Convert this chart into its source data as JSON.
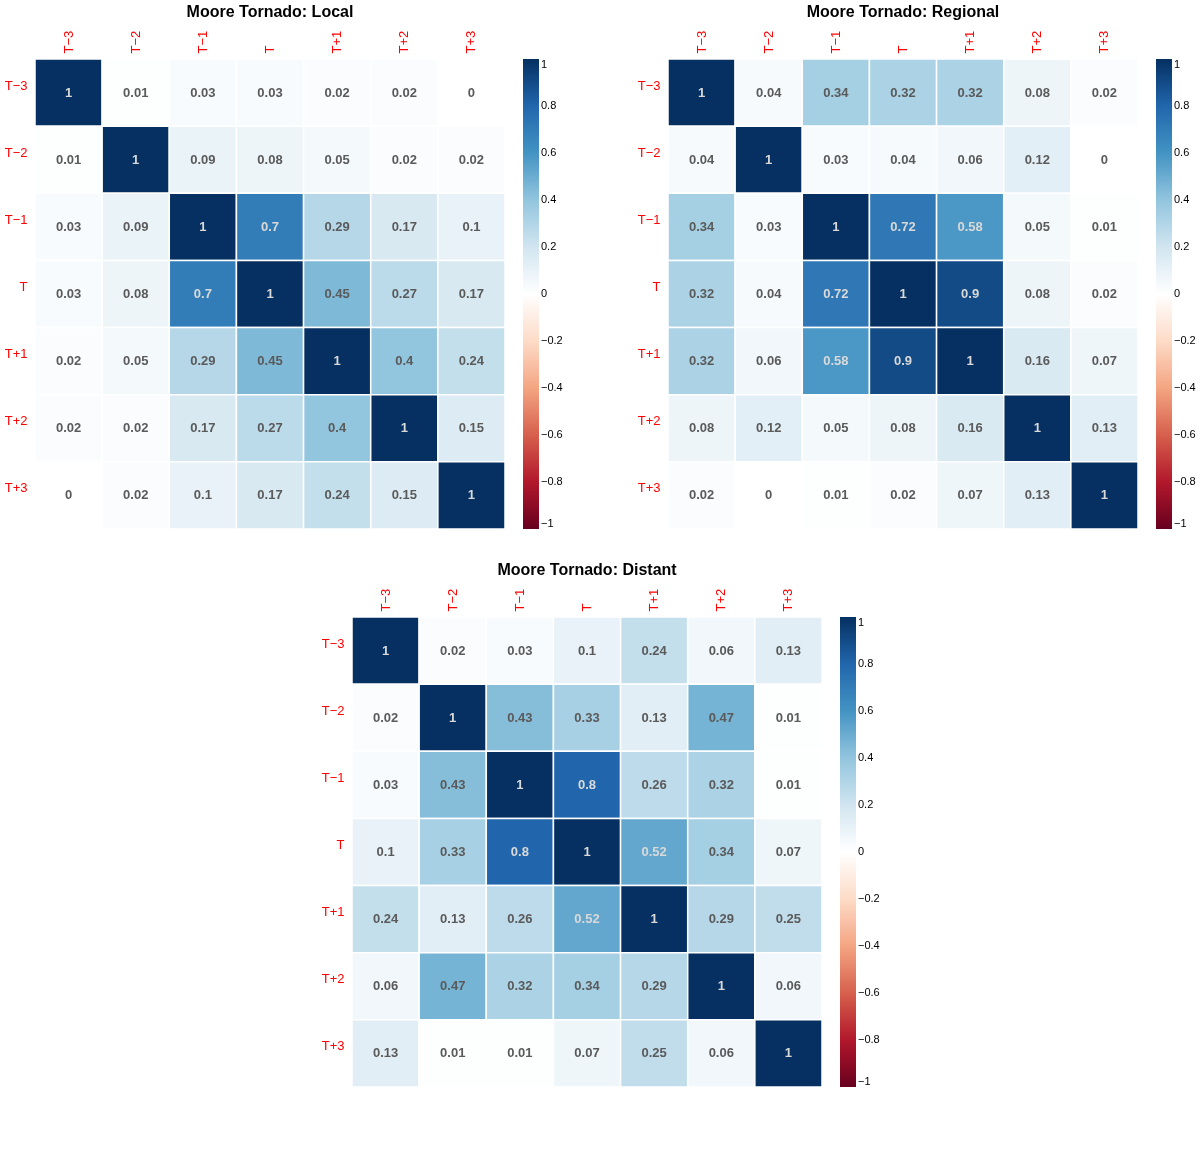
{
  "chart_data": [
    {
      "type": "heatmap",
      "title": "Moore Tornado: Local",
      "categories": [
        "T−3",
        "T−2",
        "T−1",
        "T",
        "T+1",
        "T+2",
        "T+3"
      ],
      "y_categories": [
        "T−3",
        "T−2",
        "T−1",
        "T",
        "T+1",
        "T+2",
        "T+3"
      ],
      "cells": [
        [
          1,
          0.01,
          0.03,
          0.03,
          0.02,
          0.02,
          0
        ],
        [
          0.01,
          1,
          0.09,
          0.08,
          0.05,
          0.02,
          0.02
        ],
        [
          0.03,
          0.09,
          1,
          0.7,
          0.29,
          0.17,
          0.1
        ],
        [
          0.03,
          0.08,
          0.7,
          1,
          0.45,
          0.27,
          0.17
        ],
        [
          0.02,
          0.05,
          0.29,
          0.45,
          1,
          0.4,
          0.24
        ],
        [
          0.02,
          0.02,
          0.17,
          0.27,
          0.4,
          1,
          0.15
        ],
        [
          0,
          0.02,
          0.1,
          0.17,
          0.24,
          0.15,
          1
        ]
      ],
      "clim": [
        -1,
        1
      ],
      "cticks": [
        {
          "value": -1,
          "label": "−1"
        },
        {
          "value": -0.8,
          "label": "−0.8"
        },
        {
          "value": -0.6,
          "label": "−0.6"
        },
        {
          "value": -0.4,
          "label": "−0.4"
        },
        {
          "value": -0.2,
          "label": "−0.2"
        },
        0,
        0.2,
        0.4,
        0.6,
        0.8,
        1
      ],
      "data_labels": true
    },
    {
      "type": "heatmap",
      "title": "Moore Tornado: Regional",
      "categories": [
        "T−3",
        "T−2",
        "T−1",
        "T",
        "T+1",
        "T+2",
        "T+3"
      ],
      "y_categories": [
        "T−3",
        "T−2",
        "T−1",
        "T",
        "T+1",
        "T+2",
        "T+3"
      ],
      "cells": [
        [
          1,
          0.04,
          0.34,
          0.32,
          0.32,
          0.08,
          0.02
        ],
        [
          0.04,
          1,
          0.03,
          0.04,
          0.06,
          0.12,
          0
        ],
        [
          0.34,
          0.03,
          1,
          0.72,
          0.58,
          0.05,
          0.01
        ],
        [
          0.32,
          0.04,
          0.72,
          1,
          0.9,
          0.08,
          0.02
        ],
        [
          0.32,
          0.06,
          0.58,
          0.9,
          1,
          0.16,
          0.07
        ],
        [
          0.08,
          0.12,
          0.05,
          0.08,
          0.16,
          1,
          0.13
        ],
        [
          0.02,
          0,
          0.01,
          0.02,
          0.07,
          0.13,
          1
        ]
      ],
      "clim": [
        -1,
        1
      ],
      "cticks": [
        {
          "value": -1,
          "label": "−1"
        },
        {
          "value": -0.8,
          "label": "−0.8"
        },
        {
          "value": -0.6,
          "label": "−0.6"
        },
        {
          "value": -0.4,
          "label": "−0.4"
        },
        {
          "value": -0.2,
          "label": "−0.2"
        },
        0,
        0.2,
        0.4,
        0.6,
        0.8,
        1
      ],
      "data_labels": true
    },
    {
      "type": "heatmap",
      "title": "Moore Tornado: Distant",
      "categories": [
        "T−3",
        "T−2",
        "T−1",
        "T",
        "T+1",
        "T+2",
        "T+3"
      ],
      "y_categories": [
        "T−3",
        "T−2",
        "T−1",
        "T",
        "T+1",
        "T+2",
        "T+3"
      ],
      "cells": [
        [
          1,
          0.02,
          0.03,
          0.1,
          0.24,
          0.06,
          0.13
        ],
        [
          0.02,
          1,
          0.43,
          0.33,
          0.13,
          0.47,
          0.01
        ],
        [
          0.03,
          0.43,
          1,
          0.8,
          0.26,
          0.32,
          0.01
        ],
        [
          0.1,
          0.33,
          0.8,
          1,
          0.52,
          0.34,
          0.07
        ],
        [
          0.24,
          0.13,
          0.26,
          0.52,
          1,
          0.29,
          0.25
        ],
        [
          0.06,
          0.47,
          0.32,
          0.34,
          0.29,
          1,
          0.06
        ],
        [
          0.13,
          0.01,
          0.01,
          0.07,
          0.25,
          0.06,
          1
        ]
      ],
      "clim": [
        -1,
        1
      ],
      "cticks": [
        {
          "value": -1,
          "label": "−1"
        },
        {
          "value": -0.8,
          "label": "−0.8"
        },
        {
          "value": -0.6,
          "label": "−0.6"
        },
        {
          "value": -0.4,
          "label": "−0.4"
        },
        {
          "value": -0.2,
          "label": "−0.2"
        },
        0,
        0.2,
        0.4,
        0.6,
        0.8,
        1
      ],
      "data_labels": true
    }
  ]
}
